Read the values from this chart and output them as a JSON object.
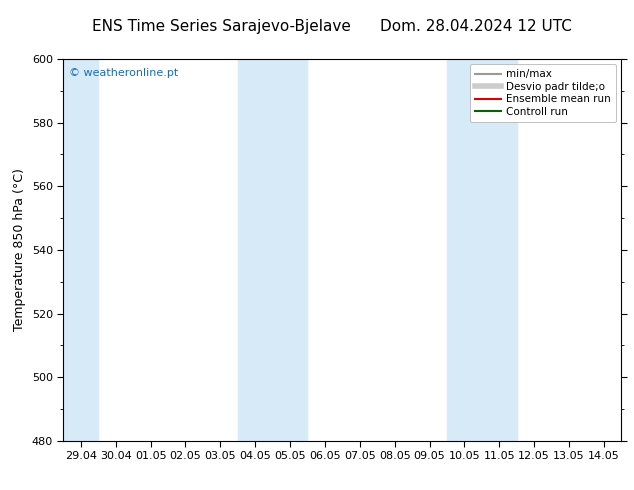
{
  "title_left": "ENS Time Series Sarajevo-Bjelave",
  "title_right": "Dom. 28.04.2024 12 UTC",
  "ylabel": "Temperature 850 hPa (°C)",
  "ylim": [
    480,
    600
  ],
  "yticks": [
    480,
    500,
    520,
    540,
    560,
    580,
    600
  ],
  "xtick_labels": [
    "29.04",
    "30.04",
    "01.05",
    "02.05",
    "03.05",
    "04.05",
    "05.05",
    "06.05",
    "07.05",
    "08.05",
    "09.05",
    "10.05",
    "11.05",
    "12.05",
    "13.05",
    "14.05"
  ],
  "watermark": "© weatheronline.pt",
  "watermark_color": "#1a6db5",
  "background_color": "#ffffff",
  "plot_bg_color": "#ffffff",
  "shaded_band_color": "#d6eaf8",
  "shaded_columns": [
    0,
    5,
    6,
    11,
    12
  ],
  "legend_items": [
    {
      "label": "min/max",
      "color": "#999999",
      "linestyle": "-",
      "lw": 1.5
    },
    {
      "label": "Desvio padr tilde;o",
      "color": "#cccccc",
      "linestyle": "-",
      "lw": 4
    },
    {
      "label": "Ensemble mean run",
      "color": "#dd0000",
      "linestyle": "-",
      "lw": 1.5
    },
    {
      "label": "Controll run",
      "color": "#006600",
      "linestyle": "-",
      "lw": 1.5
    }
  ],
  "title_fontsize": 11,
  "tick_fontsize": 8,
  "legend_fontsize": 7.5,
  "watermark_fontsize": 8,
  "ylabel_fontsize": 9
}
